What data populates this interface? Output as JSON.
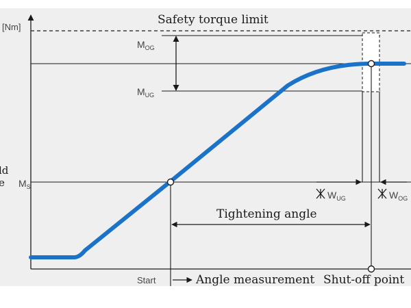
{
  "labels": {
    "unit": "[Nm]",
    "safety": "Safety torque limit",
    "mog_main": "M",
    "mog_sub": "OG",
    "mug_main": "M",
    "mug_sub": "UG",
    "ms_main": "M",
    "ms_sub": "S",
    "tightening": "Tightening angle",
    "start": "Start",
    "angle_measurement": "Angle measurement",
    "shutoff": "Shut-off point",
    "wug_main": "W",
    "wug_sub": "UG",
    "wog_main": "W",
    "wog_sub": "OG",
    "left_fragment_1": "ld",
    "left_fragment_2": "e"
  },
  "colors": {
    "background": "#efefef",
    "curve": "#1a73c9",
    "ink": "#1a1a1a",
    "label": "#444444"
  }
}
